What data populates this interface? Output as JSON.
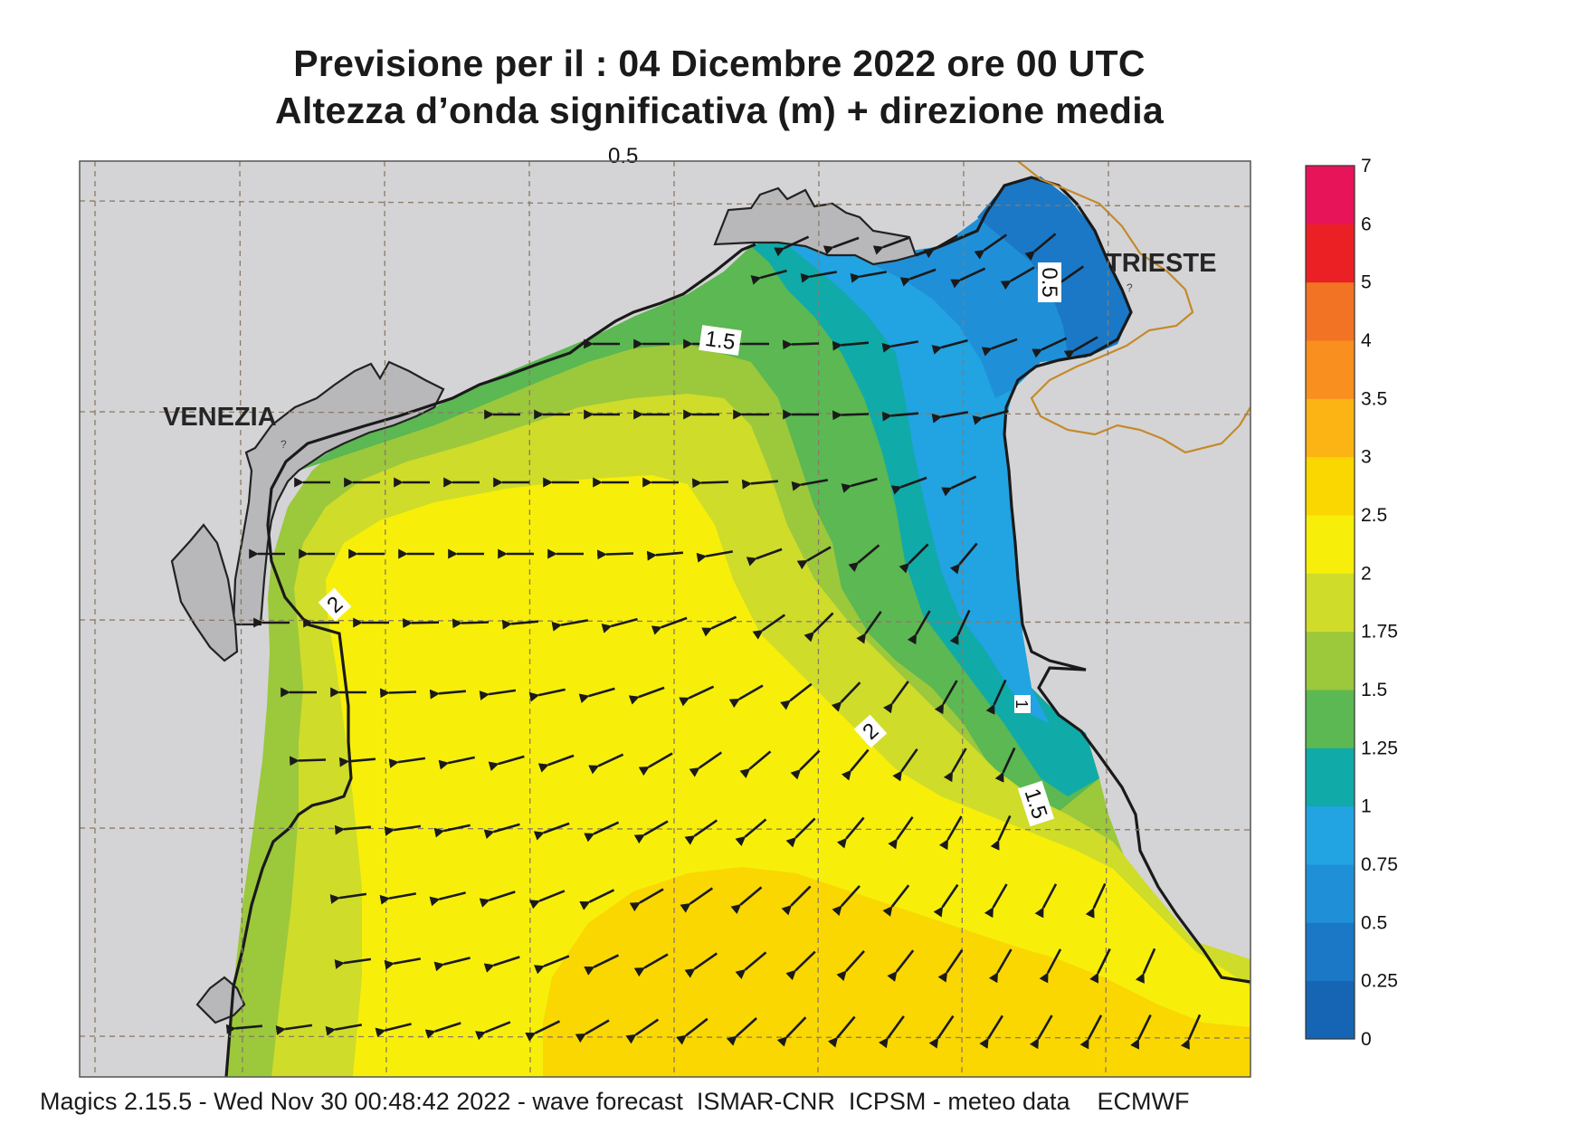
{
  "title": {
    "line1": "Previsione per il  :  04 Dicembre  2022   ore 00 UTC",
    "line2": "Altezza d’onda significativa (m) + direzione media"
  },
  "map": {
    "cities": {
      "venezia": "VENEZIA",
      "trieste": "TRIESTE"
    },
    "contour_labels": {
      "c1": "1.5",
      "c2": "0.5",
      "c3": "2",
      "c4": "2",
      "c5": "1",
      "c6": "1.5",
      "top_clipped": "0.5"
    },
    "arrow_direction": "toward west / north-west",
    "land_color": "#d4d4d6",
    "lagoon_color": "#b8b8ba",
    "border_color": "#c48a2a"
  },
  "colorbar": {
    "unit": "m",
    "ticks": [
      "0",
      "0.25",
      "0.5",
      "0.75",
      "1",
      "1.25",
      "1.5",
      "1.75",
      "2",
      "2.5",
      "3",
      "3.5",
      "4",
      "5",
      "6",
      "7"
    ],
    "colors": [
      "#1565b4",
      "#1a78c6",
      "#1f90d8",
      "#22a3e2",
      "#10aaa8",
      "#5bb852",
      "#9cc83c",
      "#cfdc2a",
      "#f7ef0a",
      "#fad700",
      "#fbb414",
      "#f88f1e",
      "#f37325",
      "#eb2024",
      "#e8145a"
    ]
  },
  "footer": "Magics 2.15.5 - Wed Nov 30 00:48:42 2022 - wave forecast  ISMAR-CNR  ICPSM - meteo data    ECMWF"
}
